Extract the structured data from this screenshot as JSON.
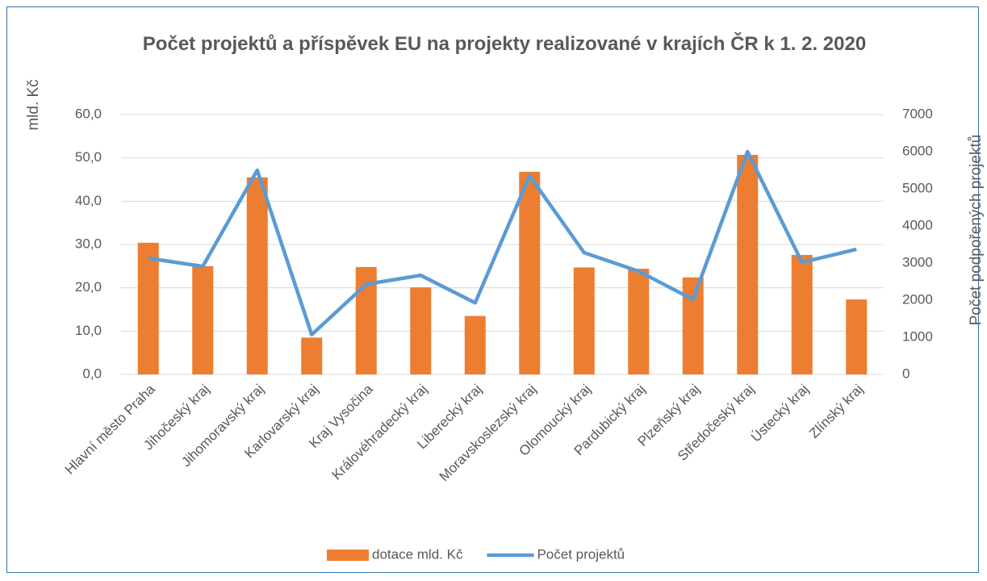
{
  "chart_data": {
    "type": "bar",
    "title": "Počet projektů a příspěvek EU na projekty realizované v krajích ČR k 1. 2. 2020",
    "ylabel": "mld. Kč",
    "y2label": "Počet podpořených projektů",
    "categories": [
      "Hlavní město Praha",
      "Jihočeský kraj",
      "Jihomoravský kraj",
      "Karlovarský kraj",
      "Kraj Vysočina",
      "Královéhradecký kraj",
      "Liberecký kraj",
      "Moravskoslezský kraj",
      "Olomoucký kraj",
      "Pardubický kraj",
      "Plzeňský kraj",
      "Středočeský kraj",
      "Ústecký kraj",
      "Zlínský kraj"
    ],
    "series": [
      {
        "name": "dotace mld. Kč",
        "color": "#ed7d31",
        "type": "bar",
        "values": [
          30.4,
          25.0,
          45.5,
          8.5,
          24.8,
          20.1,
          13.5,
          46.8,
          24.7,
          24.4,
          22.4,
          50.7,
          27.6,
          17.3
        ]
      },
      {
        "name": "Počet projektů",
        "color": "#5b9bd5",
        "type": "line",
        "axis": "y2",
        "values": [
          3130,
          2910,
          5500,
          1070,
          2430,
          2670,
          1930,
          5350,
          3280,
          2780,
          2020,
          6000,
          3020,
          3370
        ]
      }
    ],
    "ylim": [
      0,
      60
    ],
    "yticks": [
      {
        "value": 0,
        "label": "0,0"
      },
      {
        "value": 10,
        "label": "10,0"
      },
      {
        "value": 20,
        "label": "20,0"
      },
      {
        "value": 30,
        "label": "30,0"
      },
      {
        "value": 40,
        "label": "40,0"
      },
      {
        "value": 50,
        "label": "50,0"
      },
      {
        "value": 60,
        "label": "60,0"
      }
    ],
    "y2lim": [
      0,
      7000
    ],
    "y2ticks": [
      0,
      1000,
      2000,
      3000,
      4000,
      5000,
      6000,
      7000
    ],
    "grid": true,
    "legend": "bottom"
  }
}
